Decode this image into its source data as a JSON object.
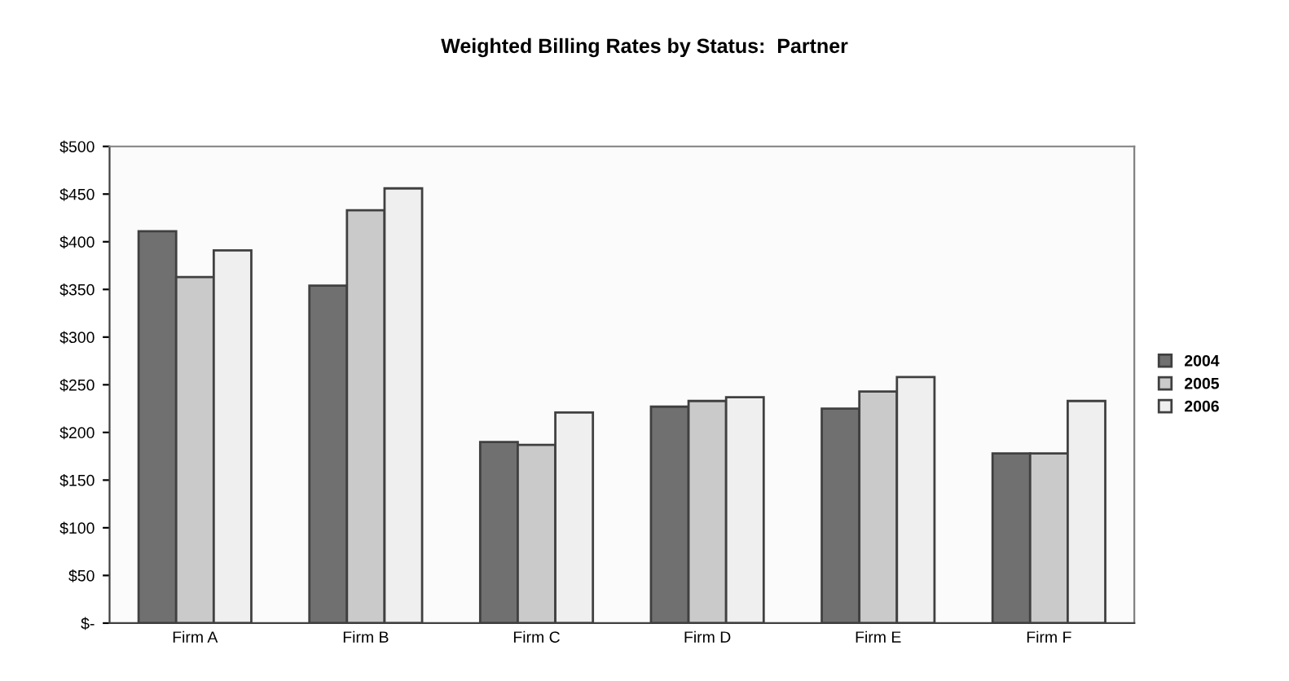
{
  "chart_data": {
    "type": "bar",
    "title": "Weighted Billing Rates by Status:  Partner",
    "categories": [
      "Firm A",
      "Firm B",
      "Firm C",
      "Firm D",
      "Firm E",
      "Firm F"
    ],
    "series": [
      {
        "name": "2004",
        "color": "#707070",
        "values": [
          411,
          354,
          190,
          227,
          225,
          178
        ]
      },
      {
        "name": "2005",
        "color": "#cacaca",
        "values": [
          363,
          433,
          187,
          233,
          243,
          178
        ]
      },
      {
        "name": "2006",
        "color": "#efefef",
        "values": [
          391,
          456,
          221,
          237,
          258,
          233
        ]
      }
    ],
    "ylim": [
      0,
      500
    ],
    "yticks": [
      {
        "value": 0,
        "label": "$-"
      },
      {
        "value": 50,
        "label": "$50"
      },
      {
        "value": 100,
        "label": "$100"
      },
      {
        "value": 150,
        "label": "$150"
      },
      {
        "value": 200,
        "label": "$200"
      },
      {
        "value": 250,
        "label": "$250"
      },
      {
        "value": 300,
        "label": "$300"
      },
      {
        "value": 350,
        "label": "$350"
      },
      {
        "value": 400,
        "label": "$400"
      },
      {
        "value": 450,
        "label": "$450"
      },
      {
        "value": 500,
        "label": "$500"
      }
    ],
    "grid": false,
    "legend": "right"
  }
}
